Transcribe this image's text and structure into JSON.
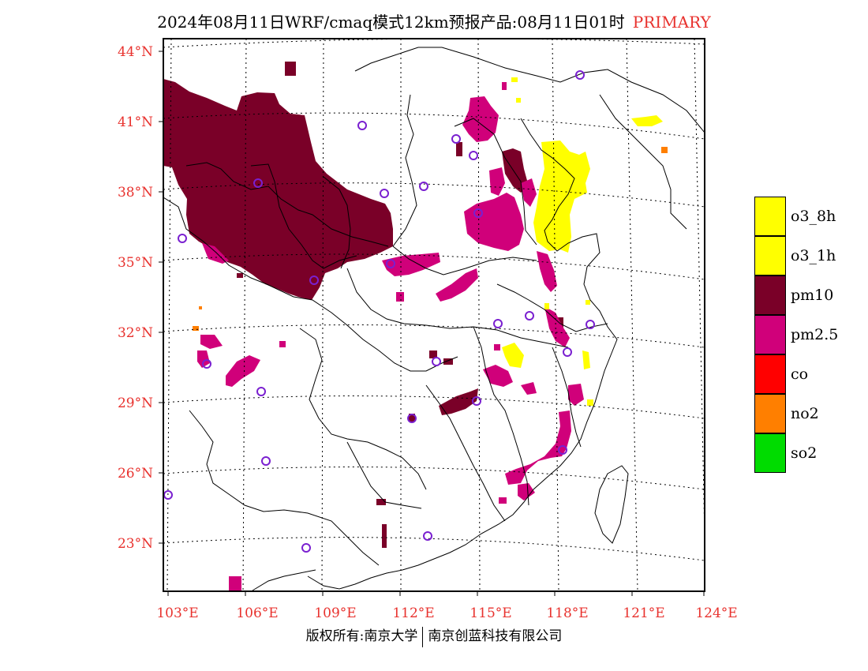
{
  "title": {
    "text": "2024年08月11日WRF/cmaq模式12km预报产品:08月11日01时",
    "tag": "PRIMARY",
    "tag_color": "#e8322e"
  },
  "axis_color": "#e8322e",
  "lat_labels": [
    "44°N",
    "41°N",
    "38°N",
    "35°N",
    "32°N",
    "29°N",
    "26°N",
    "23°N"
  ],
  "lon_labels": [
    "103°E",
    "106°E",
    "109°E",
    "112°E",
    "115°E",
    "118°E",
    "121°E",
    "124°E"
  ],
  "legend": [
    {
      "label": "o3_8h",
      "color": "#ffff00"
    },
    {
      "label": "o3_1h",
      "color": "#ffff00"
    },
    {
      "label": "pm10",
      "color": "#7a0028"
    },
    {
      "label": "pm2.5",
      "color": "#d0007a"
    },
    {
      "label": "co",
      "color": "#ff0000"
    },
    {
      "label": "no2",
      "color": "#ff7f00"
    },
    {
      "label": "so2",
      "color": "#00dc00"
    }
  ],
  "copyright": {
    "left": "版权所有:南京大学",
    "right": "南京创蓝科技有限公司"
  }
}
